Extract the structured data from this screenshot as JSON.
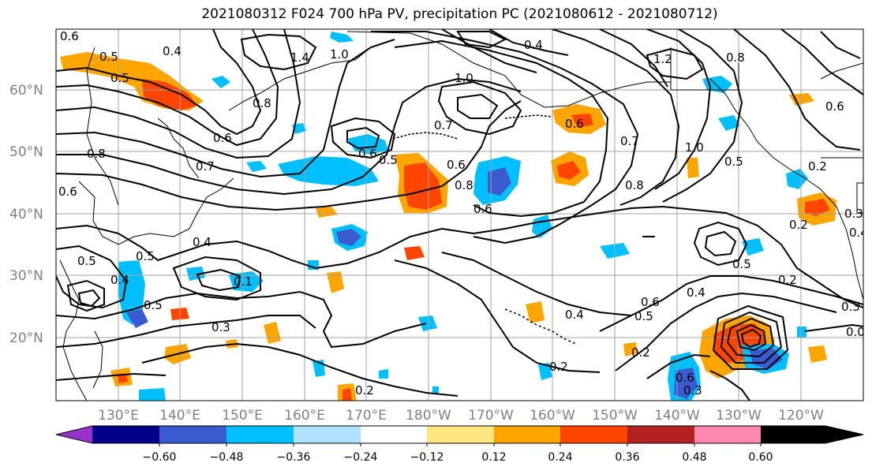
{
  "title": "2021080312 F024 700 hPa PV, precipitation PC (2021080612 - 2021080712)",
  "lat_labels": [
    "60°N",
    "50°N",
    "40°N",
    "30°N",
    "20°N"
  ],
  "lon_labels": [
    "130°E",
    "140°E",
    "150°E",
    "160°E",
    "170°E",
    "180°W",
    "170°W",
    "160°W",
    "150°W",
    "140°W",
    "130°W",
    "120°W"
  ],
  "colorbar": {
    "ticks": [
      "−0.60",
      "−0.48",
      "−0.36",
      "−0.24",
      "−0.12",
      "0.12",
      "0.24",
      "0.36",
      "0.48",
      "0.60"
    ],
    "colors": [
      "#9932cc",
      "#00008b",
      "#3a5bd0",
      "#00bfff",
      "#b0e2ff",
      "#ffffff",
      "#ffe680",
      "#ffa500",
      "#ff4500",
      "#b22222",
      "#ff88b0"
    ]
  },
  "contour_labels": [
    "0.6",
    "0.5",
    "0.4",
    "1.4",
    "1.0",
    "0.4",
    "1.2",
    "0.5",
    "0.8",
    "0.6",
    "0.8",
    "1.0",
    "0.7",
    "0.6",
    "0.7",
    "0.6",
    "1.0",
    "0.6",
    "0.5",
    "0.8",
    "0.6",
    "0.8",
    "0.5",
    "0.6",
    "0.7",
    "0.4",
    "0.8",
    "0.2",
    "0.5",
    "0.5",
    "0.3",
    "0.4",
    "0.5",
    "0.1",
    "0.3",
    "0.5",
    "0.6",
    "0.4",
    "0.4",
    "0.2",
    "0.2",
    "0.2",
    "0.3",
    "0.6",
    "0.6",
    "0.5",
    "0.2",
    "0.2",
    "0.0",
    "0.4",
    "0.3"
  ]
}
